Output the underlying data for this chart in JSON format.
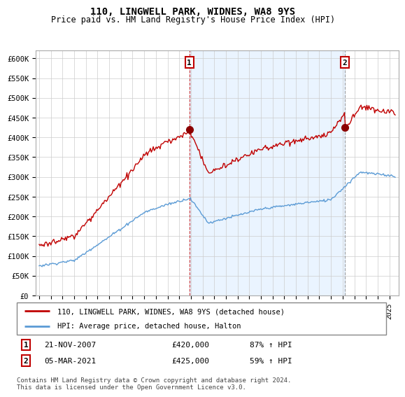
{
  "title": "110, LINGWELL PARK, WIDNES, WA8 9YS",
  "subtitle": "Price paid vs. HM Land Registry's House Price Index (HPI)",
  "legend_line1": "110, LINGWELL PARK, WIDNES, WA8 9YS (detached house)",
  "legend_line2": "HPI: Average price, detached house, Halton",
  "annotation1_label": "1",
  "annotation1_date": "21-NOV-2007",
  "annotation1_price": "£420,000",
  "annotation1_hpi": "87% ↑ HPI",
  "annotation2_label": "2",
  "annotation2_date": "05-MAR-2021",
  "annotation2_price": "£425,000",
  "annotation2_hpi": "59% ↑ HPI",
  "footnote1": "Contains HM Land Registry data © Crown copyright and database right 2024.",
  "footnote2": "This data is licensed under the Open Government Licence v3.0.",
  "hpi_color": "#5b9bd5",
  "price_color": "#c00000",
  "dashed1_color": "#c00000",
  "dashed2_color": "#888888",
  "annotation_box_color": "#c00000",
  "shade_color": "#ddeeff",
  "ylim": [
    0,
    620000
  ],
  "yticks": [
    0,
    50000,
    100000,
    150000,
    200000,
    250000,
    300000,
    350000,
    400000,
    450000,
    500000,
    550000,
    600000
  ],
  "background_color": "#ffffff",
  "grid_color": "#cccccc",
  "sale1_t": 2007.875,
  "sale2_t": 2021.167,
  "sale1_price": 420000,
  "sale2_price": 425000
}
